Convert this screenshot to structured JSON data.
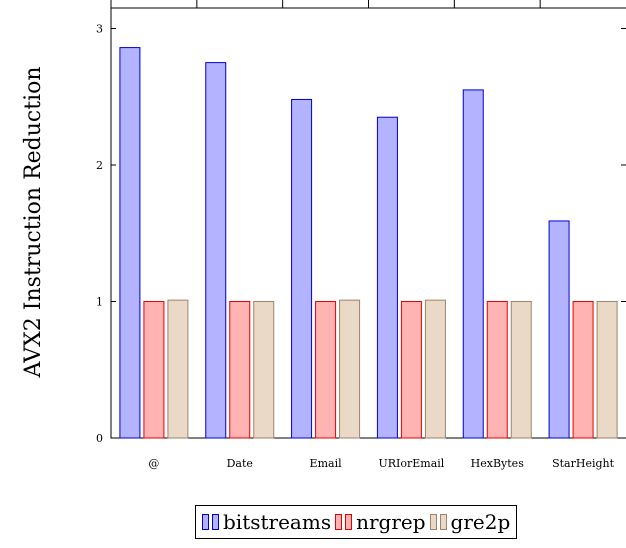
{
  "chart_data": {
    "type": "bar",
    "title": "",
    "xlabel": "",
    "ylabel": "AVX2 Instruction Reduction",
    "categories": [
      "@",
      "Date",
      "Email",
      "URIorEmail",
      "HexBytes",
      "StarHeight"
    ],
    "ylim": [
      0,
      3.15
    ],
    "yticks": [
      0,
      1,
      2,
      3
    ],
    "grid": false,
    "legend_position": "bottom",
    "series": [
      {
        "name": "bitstreams",
        "values": [
          2.86,
          2.75,
          2.48,
          2.35,
          2.55,
          1.59
        ],
        "fill": "#b3b3ff",
        "stroke": "#0000cc"
      },
      {
        "name": "nrgrep",
        "values": [
          1.0,
          1.0,
          1.0,
          1.0,
          1.0,
          1.0
        ],
        "fill": "#ffb3b3",
        "stroke": "#e60000"
      },
      {
        "name": "gre2p",
        "values": [
          1.01,
          1.0,
          1.01,
          1.01,
          1.0,
          1.0
        ],
        "fill": "#ead9c6",
        "stroke": "#a0826a"
      }
    ]
  }
}
